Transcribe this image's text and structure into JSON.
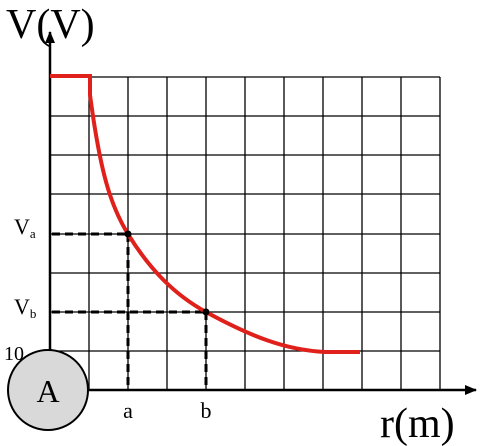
{
  "axes": {
    "y_label": "V(V)",
    "x_label": "r(m)"
  },
  "y_marks": {
    "va": {
      "main": "V",
      "sub": "a"
    },
    "vb": {
      "main": "V",
      "sub": "b"
    },
    "ten": "10"
  },
  "x_marks": {
    "a": "a",
    "b": "b"
  },
  "charge": {
    "label": "A"
  }
}
